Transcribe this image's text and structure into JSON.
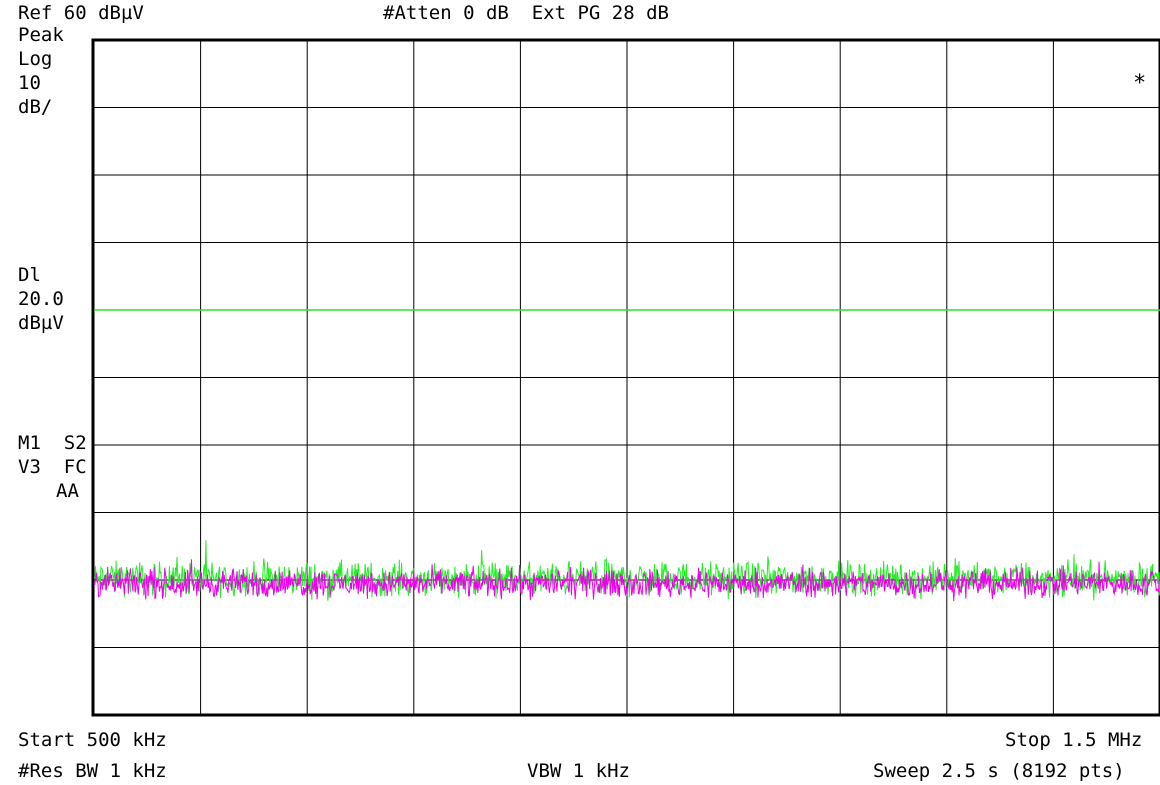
{
  "header": {
    "ref_level": "Ref 60 dBµV",
    "attenuation": "#Atten 0 dB  Ext PG 28 dB"
  },
  "left_annotations": {
    "detector": "Peak",
    "scale_type": "Log",
    "scale_value": "10",
    "scale_unit": "dB/",
    "display_line_label": "Dl",
    "display_line_value": "20.0",
    "display_line_unit": "dBµV",
    "trace_status_1": "M1  S2",
    "trace_status_2": "V3  FC",
    "trace_status_3": "AA"
  },
  "asterisk": "*",
  "footer": {
    "start": "Start 500 kHz",
    "stop": "Stop 1.5 MHz",
    "res_bw": "#Res BW 1 kHz",
    "vbw": "VBW 1 kHz",
    "sweep": "Sweep 2.5 s (8192 pts)"
  },
  "colors": {
    "grid": "#000000",
    "display_line": "#33dd33",
    "trace_green": "#22ee22",
    "trace_magenta": "#ee00ee",
    "background": "#ffffff"
  },
  "chart_data": {
    "type": "line",
    "x_unit": "kHz",
    "xlim": [
      500,
      1500
    ],
    "y_unit": "dBµV",
    "ylim": [
      -40,
      60
    ],
    "reference_level": 60,
    "scale_per_div": 10,
    "divisions": 10,
    "grid": true,
    "display_line": 20,
    "points": 8192,
    "series": [
      {
        "color": "green",
        "noise_floor_mean": -19.8,
        "noise_floor_spread": 1.2
      },
      {
        "color": "magenta",
        "noise_floor_mean": -20.5,
        "noise_floor_spread": 1.0
      }
    ]
  }
}
